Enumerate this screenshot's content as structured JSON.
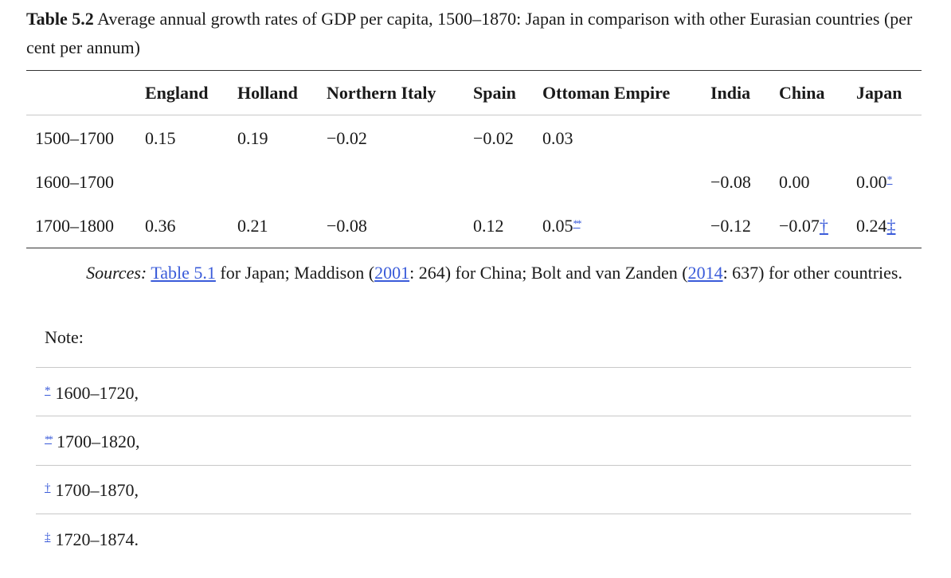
{
  "caption": {
    "label": "Table 5.2",
    "text": "Average annual growth rates of GDP per capita, 1500–1870: Japan in comparison with other Eurasian countries (per cent per annum)"
  },
  "table": {
    "headers": [
      "England",
      "Holland",
      "Northern Italy",
      "Spain",
      "Ottoman Empire",
      "India",
      "China",
      "Japan"
    ],
    "rows": [
      {
        "period": "1500–1700",
        "england": "0.15",
        "holland": "0.19",
        "northern_italy": "−0.02",
        "spain": "−0.02",
        "ottoman": "0.03",
        "india": "",
        "china": "",
        "japan": ""
      },
      {
        "period": "1600–1700",
        "england": "",
        "holland": "",
        "northern_italy": "",
        "spain": "",
        "ottoman": "",
        "india": "−0.08",
        "china": "0.00",
        "japan": "0.00"
      },
      {
        "period": "1700–1800",
        "england": "0.36",
        "holland": "0.21",
        "northern_italy": "−0.08",
        "spain": "0.12",
        "ottoman": "0.05",
        "india": "−0.12",
        "china": "−0.07",
        "japan": "0.24"
      }
    ]
  },
  "sources": {
    "label": "Sources:",
    "link1": "Table 5.1",
    "part1": " for Japan; Maddison (",
    "link2": "2001",
    "part2": ": 264) for China; Bolt and van Zanden (",
    "link3": "2014",
    "part3": ": 637) for other countries."
  },
  "note": {
    "label": "Note:",
    "footnotes": [
      {
        "mark": "*",
        "text": "1600–1720,"
      },
      {
        "mark": "**",
        "text": "1700–1820,"
      },
      {
        "mark": "†",
        "text": "1700–1870,"
      },
      {
        "mark": "‡",
        "text": "1720–1874."
      }
    ]
  },
  "colors": {
    "link": "#3a5bd9",
    "text": "#1a1a1a",
    "rule": "#333333",
    "light_rule": "#c8c8c8"
  }
}
